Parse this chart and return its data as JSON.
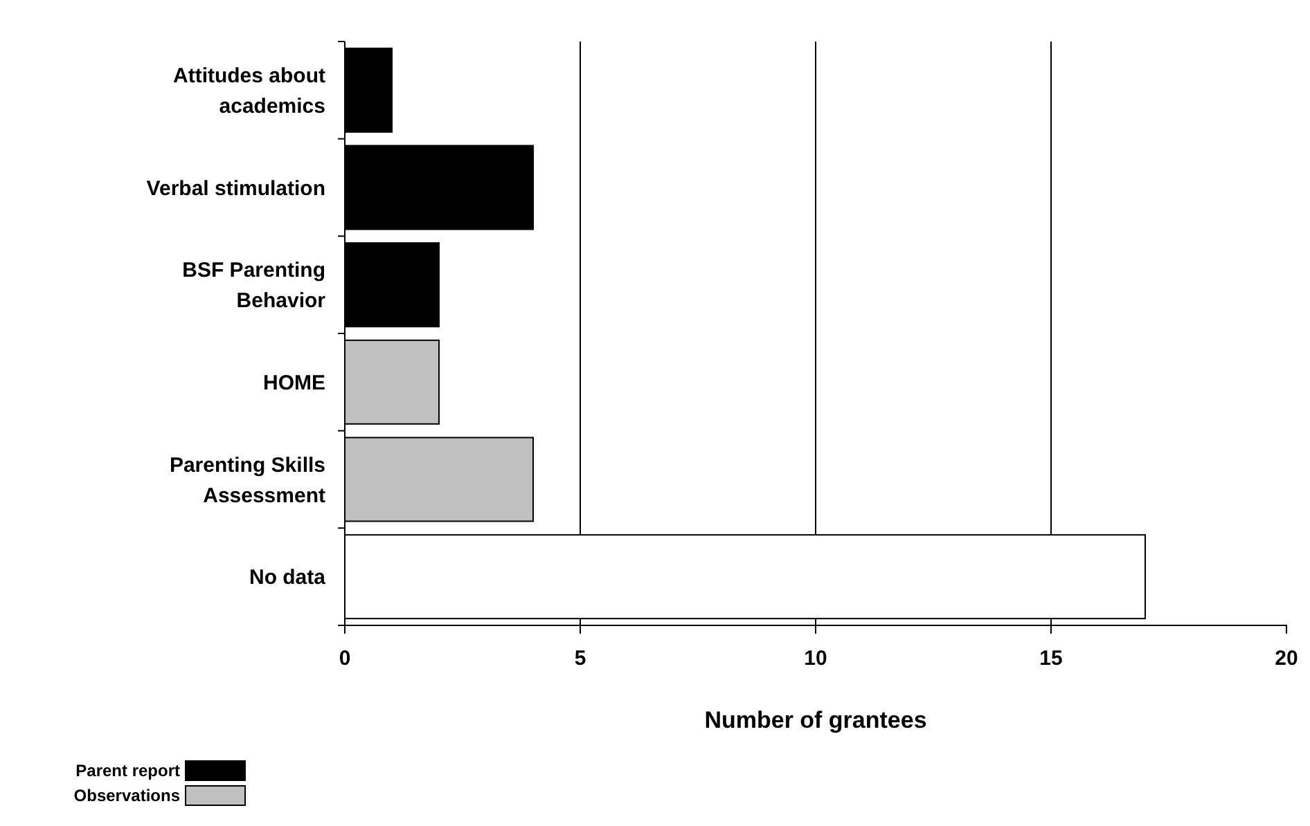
{
  "chart_data": {
    "type": "bar",
    "orientation": "horizontal",
    "xlabel": "Number of grantees",
    "categories": [
      "Attitudes about academics",
      "Verbal stimulation",
      "BSF Parenting Behavior",
      "HOME",
      "Parenting Skills Assessment",
      "No data"
    ],
    "series": [
      {
        "name": "Parent report",
        "color": "#000000",
        "values": [
          1,
          4,
          2,
          null,
          null,
          null
        ]
      },
      {
        "name": "Observations",
        "color": "#c0c0c0",
        "values": [
          null,
          null,
          null,
          2,
          4,
          null
        ]
      },
      {
        "color": "#ffffff",
        "values": [
          null,
          null,
          null,
          null,
          null,
          17
        ]
      }
    ],
    "xlim": [
      0,
      20
    ],
    "xticks": [
      0,
      5,
      10,
      15,
      20
    ],
    "grid": "x",
    "legend": "bottom left"
  }
}
